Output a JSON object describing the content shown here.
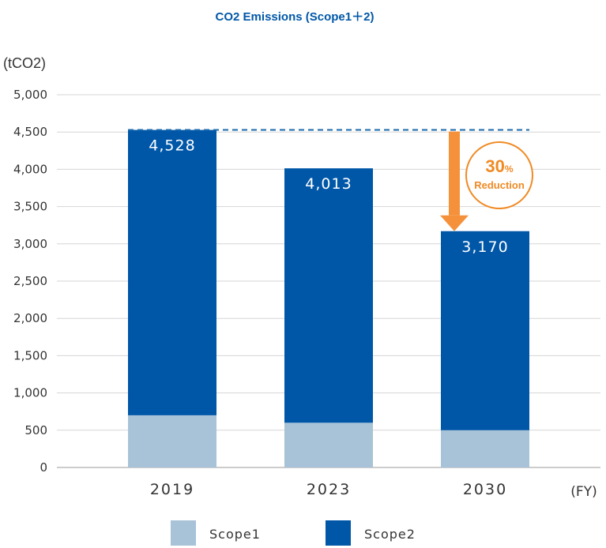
{
  "chart_data": {
    "type": "bar",
    "stacked": true,
    "title": "CO2 Emissions (Scope1＋2)",
    "ylabel": "(tCO2)",
    "xlabel": "(FY)",
    "categories": [
      "2019",
      "2023",
      "2030"
    ],
    "ylim": [
      0,
      5000
    ],
    "yticks": [
      0,
      500,
      1000,
      1500,
      2000,
      2500,
      3000,
      3500,
      4000,
      4500,
      5000
    ],
    "ytick_labels": [
      "0",
      "500",
      "1,000",
      "1,500",
      "2,000",
      "2,500",
      "3,000",
      "3,500",
      "4,000",
      "4,500",
      "5,000"
    ],
    "series": [
      {
        "name": "Scope1",
        "values": [
          700,
          600,
          500
        ],
        "color": "#a8c2d8"
      },
      {
        "name": "Scope2",
        "values": [
          3828,
          3413,
          2670
        ],
        "color": "#0057a8"
      }
    ],
    "totals": [
      4528,
      4013,
      3170
    ],
    "total_labels": [
      "4,528",
      "4,013",
      "3,170"
    ],
    "reference_line": {
      "value": 4528,
      "style": "dashed",
      "color": "#1a6aad"
    },
    "annotation": {
      "percent": "30",
      "percent_sign": "%",
      "text": "Reduction",
      "color": "#f08a24"
    },
    "grid": true,
    "legend": "bottom-center"
  }
}
